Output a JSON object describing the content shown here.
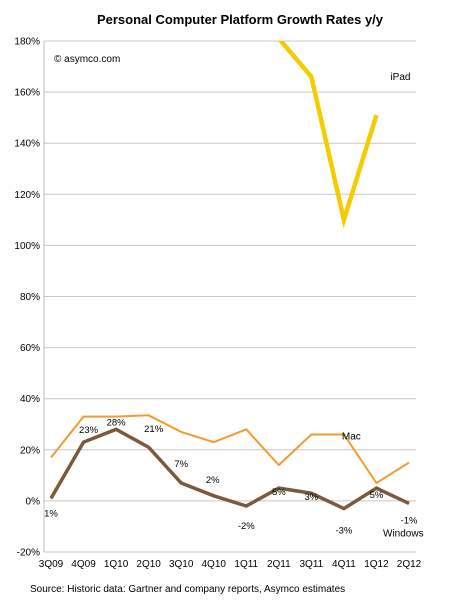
{
  "chart_data": {
    "type": "line",
    "title": "Personal Computer Platform Growth Rates y/y",
    "credit": "© asymco.com",
    "source": "Source: Historic data: Gartner and company reports, Asymco estimates",
    "categories": [
      "3Q09",
      "4Q09",
      "1Q10",
      "2Q10",
      "3Q10",
      "4Q10",
      "1Q11",
      "2Q11",
      "3Q11",
      "4Q11",
      "1Q12",
      "2Q12"
    ],
    "y_ticks": [
      "-20%",
      "0%",
      "20%",
      "40%",
      "60%",
      "80%",
      "100%",
      "120%",
      "140%",
      "160%",
      "180%"
    ],
    "ylim": [
      -20,
      180
    ],
    "grid": true,
    "series": [
      {
        "name": "iPad",
        "color": "#f5cc00",
        "values": [
          null,
          null,
          null,
          null,
          null,
          null,
          null,
          181,
          166,
          110,
          151,
          null
        ]
      },
      {
        "name": "Mac",
        "color": "#f59a2e",
        "values": [
          17,
          33,
          33,
          33.5,
          27,
          23,
          28,
          14,
          26,
          26,
          7,
          15
        ]
      },
      {
        "name": "Windows",
        "color": "#7a5a3a",
        "values": [
          1,
          23,
          28,
          21,
          7,
          2,
          -2,
          5,
          3,
          -3,
          5,
          -1
        ],
        "data_labels": [
          "1%",
          "23%",
          "28%",
          "21%",
          "7%",
          "2%",
          "-2%",
          "5%",
          "3%",
          "-3%",
          "5%",
          "-1%"
        ]
      }
    ]
  }
}
